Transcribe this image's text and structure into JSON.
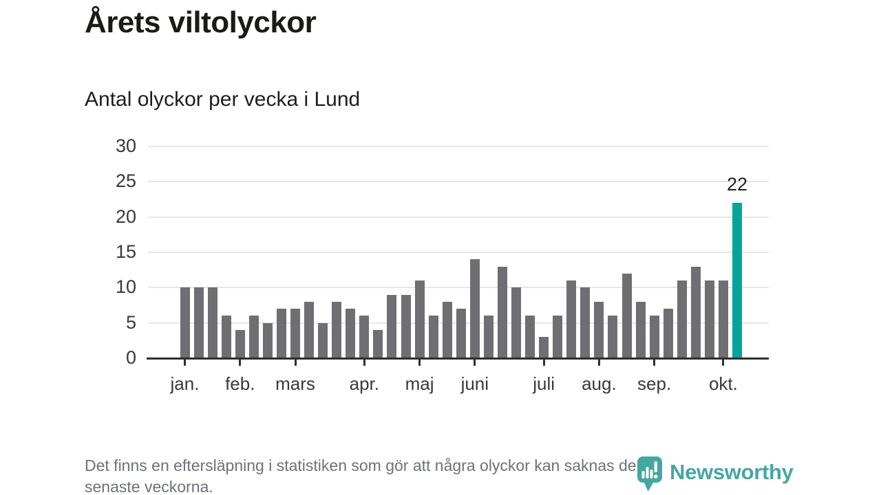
{
  "title": "Årets viltolyckor",
  "subtitle": "Antal olyckor per vecka i Lund",
  "footer": {
    "line1": "Det finns en eftersläpning i statistiken som gör att några olyckor kan saknas de",
    "line2": "senaste veckorna."
  },
  "logo": {
    "name": "Newsworthy",
    "color": "#44a7a1"
  },
  "chart_data": {
    "type": "bar",
    "title": "Årets viltolyckor",
    "subtitle": "Antal olyckor per vecka i Lund",
    "x_unit": "vecka",
    "x_weeks": [
      1,
      2,
      3,
      4,
      5,
      6,
      7,
      8,
      9,
      10,
      11,
      12,
      13,
      14,
      15,
      16,
      17,
      18,
      19,
      20,
      21,
      22,
      23,
      24,
      25,
      26,
      27,
      28,
      29,
      30,
      31,
      32,
      33,
      34,
      35,
      36,
      37,
      38,
      39,
      40,
      41
    ],
    "values": [
      10,
      10,
      10,
      6,
      4,
      6,
      5,
      7,
      7,
      8,
      5,
      8,
      7,
      6,
      4,
      9,
      9,
      11,
      6,
      8,
      7,
      14,
      6,
      13,
      10,
      6,
      3,
      6,
      11,
      10,
      8,
      6,
      12,
      8,
      6,
      7,
      11,
      13,
      11,
      11,
      22
    ],
    "highlight": {
      "index": 40,
      "label": "22"
    },
    "bar_color": "#6e6e73",
    "highlight_color": "#00a69c",
    "ylim": [
      0,
      30
    ],
    "yticks": [
      0,
      5,
      10,
      15,
      20,
      25,
      30
    ],
    "grid": true,
    "legend": "none",
    "month_ticks": [
      {
        "label": "jan.",
        "week": 1
      },
      {
        "label": "feb.",
        "week": 5
      },
      {
        "label": "mars",
        "week": 9
      },
      {
        "label": "apr.",
        "week": 14
      },
      {
        "label": "maj",
        "week": 18
      },
      {
        "label": "juni",
        "week": 22
      },
      {
        "label": "juli",
        "week": 27
      },
      {
        "label": "aug.",
        "week": 31
      },
      {
        "label": "sep.",
        "week": 35
      },
      {
        "label": "okt.",
        "week": 40
      }
    ]
  }
}
